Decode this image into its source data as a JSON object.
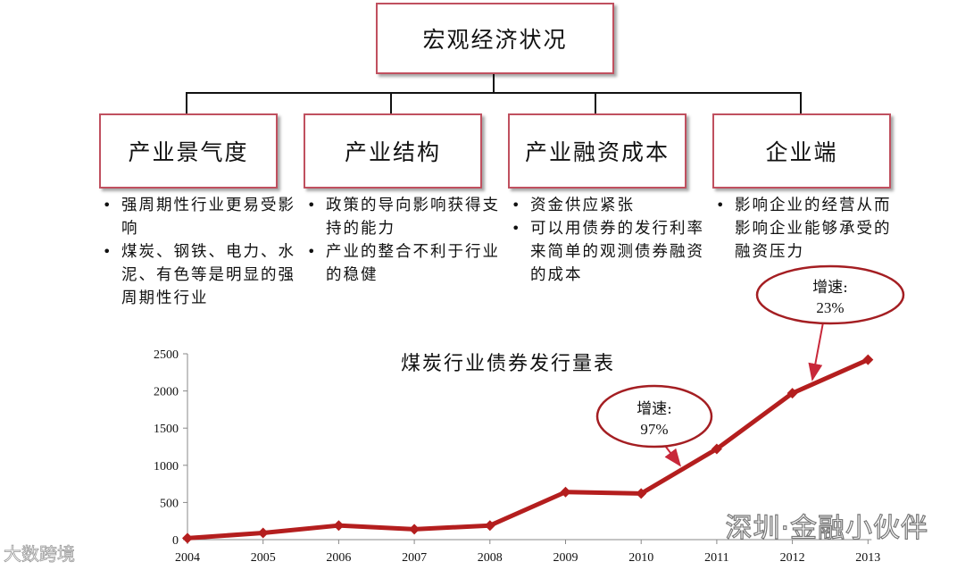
{
  "top_box": {
    "label": "宏观经济状况"
  },
  "categories": [
    {
      "label": "产业景气度",
      "bullets": [
        "强周期性行业更易受影响",
        "煤炭、钢铁、电力、水泥、有色等是明显的强周期性行业"
      ]
    },
    {
      "label": "产业结构",
      "bullets": [
        "政策的导向影响获得支持的能力",
        "产业的整合不利于行业的稳健"
      ]
    },
    {
      "label": "产业融资成本",
      "bullets": [
        "资金供应紧张",
        "可以用债券的发行利率来简单的观测债券融资的成本"
      ]
    },
    {
      "label": "企业端",
      "bullets": [
        "影响企业的经营从而影响企业能够承受的融资压力"
      ]
    }
  ],
  "colors": {
    "box_border": "#c0505f",
    "line": "#b41e1e",
    "callout_border": "#a41e22"
  },
  "chart_data": {
    "type": "line",
    "title": "煤炭行业债券发行量表",
    "x": [
      "2004",
      "2005",
      "2006",
      "2007",
      "2008",
      "2009",
      "2010",
      "2011",
      "2012",
      "2013"
    ],
    "series": [
      {
        "values": [
          20,
          90,
          190,
          140,
          190,
          640,
          620,
          1220,
          1970,
          2420
        ]
      }
    ],
    "ylim": [
      0,
      2500
    ],
    "yticks": [
      "0",
      "500",
      "1000",
      "1500",
      "2000",
      "2500"
    ],
    "grid": false,
    "annotations": [
      {
        "line1": "增速:",
        "line2": "97%",
        "points_to": "2010-2011"
      },
      {
        "line1": "增速:",
        "line2": "23%",
        "points_to": "2012-2013"
      }
    ]
  },
  "watermarks": {
    "right": "深圳·金融小伙伴",
    "left": "大数跨境"
  }
}
